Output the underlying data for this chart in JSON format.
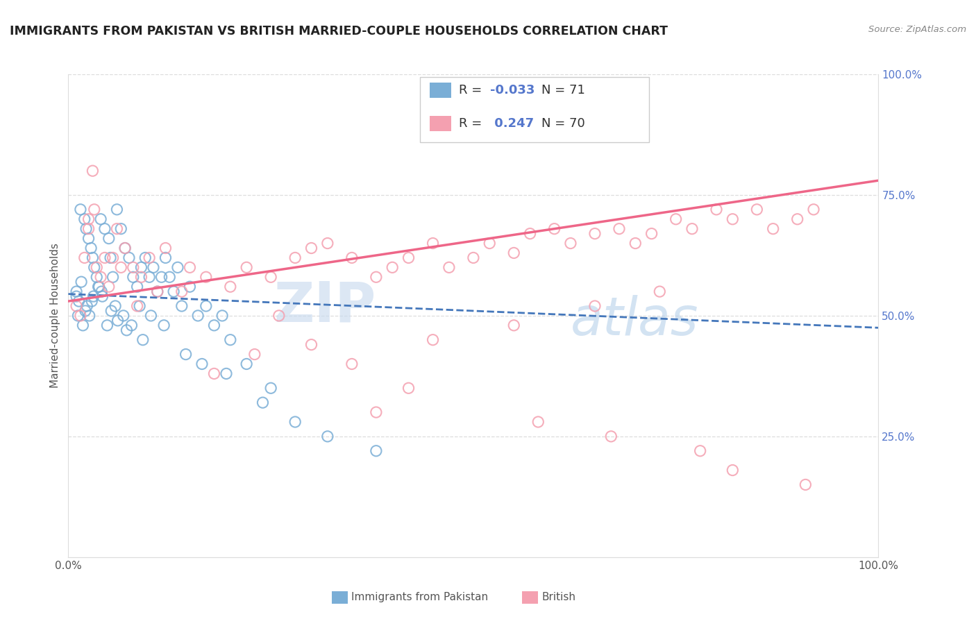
{
  "title": "IMMIGRANTS FROM PAKISTAN VS BRITISH MARRIED-COUPLE HOUSEHOLDS CORRELATION CHART",
  "source": "Source: ZipAtlas.com",
  "ylabel": "Married-couple Households",
  "legend_label1": "Immigrants from Pakistan",
  "legend_label2": "British",
  "r1": -0.033,
  "n1": 71,
  "r2": 0.247,
  "n2": 70,
  "blue_color": "#7aaed6",
  "pink_color": "#f4a0b0",
  "blue_line_color": "#4477bb",
  "pink_line_color": "#ee6688",
  "right_tick_color": "#5577cc",
  "watermark_zip_color": "#c5d8ee",
  "watermark_atlas_color": "#b0cce8",
  "grid_color": "#dddddd",
  "blue_x": [
    1.0,
    1.5,
    2.0,
    2.2,
    2.5,
    2.8,
    3.0,
    3.2,
    3.5,
    3.8,
    4.0,
    4.2,
    4.5,
    5.0,
    5.2,
    5.5,
    6.0,
    6.5,
    7.0,
    7.5,
    8.0,
    8.5,
    9.0,
    9.5,
    10.0,
    10.5,
    11.0,
    11.5,
    12.0,
    12.5,
    13.0,
    13.5,
    14.0,
    15.0,
    16.0,
    17.0,
    18.0,
    19.0,
    20.0,
    22.0,
    25.0,
    1.2,
    1.8,
    2.3,
    2.6,
    3.1,
    3.7,
    4.8,
    5.8,
    6.8,
    7.8,
    8.8,
    10.2,
    11.8,
    14.5,
    16.5,
    19.5,
    24.0,
    28.0,
    32.0,
    38.0,
    1.0,
    1.3,
    1.6,
    2.1,
    2.9,
    4.1,
    5.3,
    6.1,
    7.2,
    9.2
  ],
  "blue_y": [
    54.0,
    72.0,
    70.0,
    68.0,
    66.0,
    64.0,
    62.0,
    60.0,
    58.0,
    56.0,
    70.0,
    54.0,
    68.0,
    66.0,
    62.0,
    58.0,
    72.0,
    68.0,
    64.0,
    62.0,
    58.0,
    56.0,
    60.0,
    62.0,
    58.0,
    60.0,
    55.0,
    58.0,
    62.0,
    58.0,
    55.0,
    60.0,
    52.0,
    56.0,
    50.0,
    52.0,
    48.0,
    50.0,
    45.0,
    40.0,
    35.0,
    50.0,
    48.0,
    52.0,
    50.0,
    54.0,
    56.0,
    48.0,
    52.0,
    50.0,
    48.0,
    52.0,
    50.0,
    48.0,
    42.0,
    40.0,
    38.0,
    32.0,
    28.0,
    25.0,
    22.0,
    55.0,
    53.0,
    57.0,
    51.0,
    53.0,
    55.0,
    51.0,
    49.0,
    47.0,
    45.0
  ],
  "pink_x": [
    1.0,
    1.5,
    2.0,
    2.5,
    3.0,
    3.5,
    4.0,
    5.0,
    5.5,
    6.0,
    7.0,
    8.0,
    9.0,
    10.0,
    12.0,
    15.0,
    17.0,
    20.0,
    22.0,
    25.0,
    28.0,
    30.0,
    32.0,
    35.0,
    38.0,
    40.0,
    42.0,
    45.0,
    47.0,
    50.0,
    52.0,
    55.0,
    57.0,
    60.0,
    62.0,
    65.0,
    68.0,
    70.0,
    72.0,
    75.0,
    77.0,
    80.0,
    82.0,
    85.0,
    87.0,
    90.0,
    92.0,
    30.0,
    35.0,
    18.0,
    23.0,
    8.5,
    11.0,
    4.5,
    6.5,
    2.5,
    3.2,
    14.0,
    26.0,
    45.0,
    55.0,
    65.0,
    73.0,
    82.0,
    91.0,
    42.0,
    38.0,
    58.0,
    67.0,
    78.0
  ],
  "pink_y": [
    52.0,
    50.0,
    62.0,
    68.0,
    80.0,
    60.0,
    58.0,
    56.0,
    62.0,
    68.0,
    64.0,
    60.0,
    58.0,
    62.0,
    64.0,
    60.0,
    58.0,
    56.0,
    60.0,
    58.0,
    62.0,
    64.0,
    65.0,
    62.0,
    58.0,
    60.0,
    62.0,
    65.0,
    60.0,
    62.0,
    65.0,
    63.0,
    67.0,
    68.0,
    65.0,
    67.0,
    68.0,
    65.0,
    67.0,
    70.0,
    68.0,
    72.0,
    70.0,
    72.0,
    68.0,
    70.0,
    72.0,
    44.0,
    40.0,
    38.0,
    42.0,
    52.0,
    55.0,
    62.0,
    60.0,
    70.0,
    72.0,
    55.0,
    50.0,
    45.0,
    48.0,
    52.0,
    55.0,
    18.0,
    15.0,
    35.0,
    30.0,
    28.0,
    25.0,
    22.0
  ],
  "blue_line": [
    0,
    100,
    54.5,
    47.5
  ],
  "pink_line": [
    0,
    100,
    53.0,
    78.0
  ],
  "xlim": [
    0,
    100
  ],
  "ylim": [
    0,
    100
  ],
  "yticks": [
    25,
    50,
    75,
    100
  ],
  "ytick_labels": [
    "25.0%",
    "50.0%",
    "75.0%",
    "100.0%"
  ]
}
